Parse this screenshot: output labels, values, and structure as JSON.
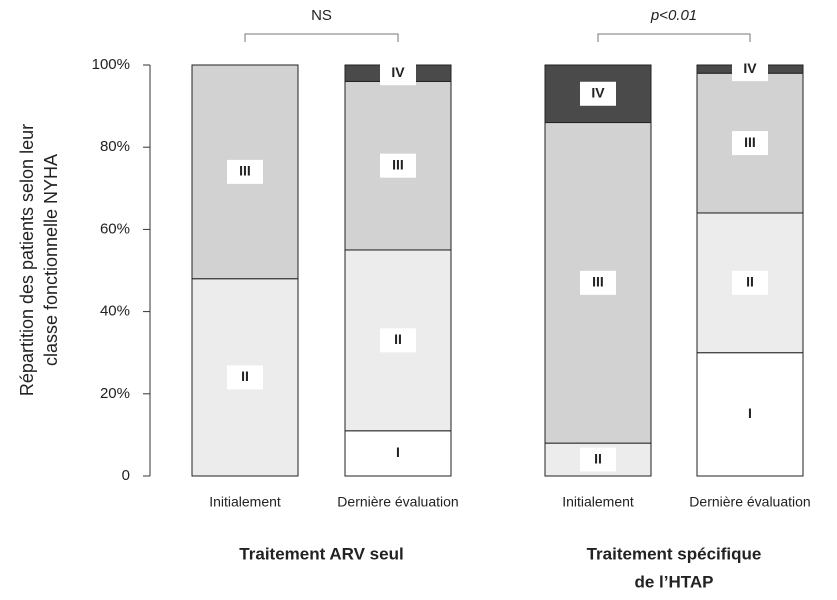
{
  "chart_data": {
    "type": "stacked_bar",
    "ylabel": [
      "Répartition des patients selon leur",
      "classe fonctionnelle NYHA"
    ],
    "categories": [
      "Initialement",
      "Dernière évaluation",
      "Initialement",
      "Dernière évaluation"
    ],
    "series": [
      {
        "name": "I",
        "color": "#ffffff",
        "values": [
          0,
          11,
          0,
          30
        ]
      },
      {
        "name": "II",
        "color": "#ececec",
        "values": [
          48,
          44,
          8,
          34
        ]
      },
      {
        "name": "III",
        "color": "#d2d2d2",
        "values": [
          52,
          41,
          78,
          34
        ]
      },
      {
        "name": "IV",
        "color": "#4a4a4a",
        "values": [
          0,
          4,
          14,
          2
        ]
      }
    ],
    "groups": [
      {
        "lines": [
          "Traitement ARV seul"
        ],
        "annotation": "NS"
      },
      {
        "lines": [
          "Traitement spécifique",
          "de l’HTAP"
        ],
        "annotation": "p<0.01"
      }
    ],
    "ylim": [
      0,
      100
    ],
    "yticks": [
      0,
      {
        "value": 20,
        "label": "20%"
      },
      {
        "value": 40,
        "label": "40%"
      },
      {
        "value": 60,
        "label": "60%"
      },
      {
        "value": 80,
        "label": "80%"
      },
      {
        "value": 100,
        "label": "100%"
      }
    ]
  }
}
